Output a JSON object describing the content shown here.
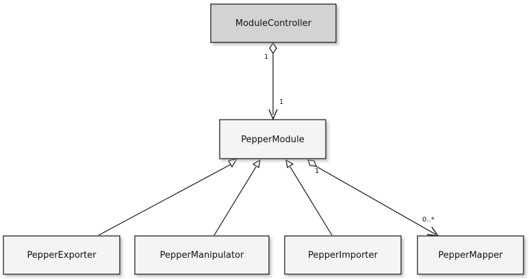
{
  "classes": {
    "module_controller": {
      "name": "ModuleController",
      "fill": "#d3d3d3"
    },
    "pepper_module": {
      "name": "PepperModule",
      "fill": "#f4f4f4"
    },
    "pepper_exporter": {
      "name": "PepperExporter",
      "fill": "#f4f4f4"
    },
    "pepper_manipulator": {
      "name": "PepperManipulator",
      "fill": "#f4f4f4"
    },
    "pepper_importer": {
      "name": "PepperImporter",
      "fill": "#f4f4f4"
    },
    "pepper_mapper": {
      "name": "PepperMapper",
      "fill": "#f4f4f4"
    }
  },
  "relations": {
    "controller_module": {
      "source_multiplicity": "1",
      "target_multiplicity": "1"
    },
    "module_mapper": {
      "source_multiplicity": "1",
      "target_multiplicity": "0..*"
    }
  },
  "colors": {
    "stroke": "#111111",
    "shadow": "#b0b0b0"
  }
}
